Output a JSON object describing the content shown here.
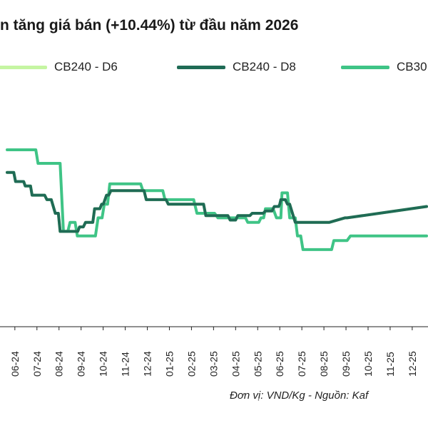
{
  "page": {
    "title": "n tăng giá bán (+10.44%) từ đầu năm 2026",
    "footer": "Đơn vị: VND/Kg - Nguồn: Kaf"
  },
  "legend": [
    {
      "label": "CB240 - D6",
      "color": "#c5f5a2"
    },
    {
      "label": "CB240 - D8",
      "color": "#1f6b55"
    },
    {
      "label": "CB30",
      "color": "#3fc486"
    }
  ],
  "chart_data": {
    "type": "line",
    "title": "n tăng giá bán (+10.44%) từ đầu năm 2026",
    "xlabel": "",
    "ylabel": "",
    "x_ticks": [
      "06-24",
      "07-24",
      "08-24",
      "09-24",
      "10-24",
      "11-24",
      "12-24",
      "01-25",
      "02-25",
      "03-25",
      "04-25",
      "05-25",
      "06-25",
      "07-25",
      "08-25",
      "09-25",
      "10-25",
      "11-25",
      "12-25"
    ],
    "x_range": [
      0,
      19
    ],
    "y_range": [
      0,
      100
    ],
    "grid": false,
    "legend_position": "top",
    "series": [
      {
        "name": "CB240 - D6",
        "color": "#c5f5a2",
        "x": [
          0,
          0.3,
          0.38,
          0.75,
          0.82,
          1.06,
          1.13,
          1.7,
          1.8,
          2.0,
          2.18,
          2.32,
          2.4,
          3.2,
          3.28,
          3.45,
          3.55,
          3.88,
          3.96,
          4.2,
          4.28,
          4.36,
          4.5,
          4.6,
          4.7,
          6.2,
          6.3,
          7.2,
          7.3,
          8.9,
          9.0,
          10.0,
          10.1,
          10.35,
          10.45,
          11.0,
          11.1,
          11.6,
          11.7,
          12.0,
          12.05,
          12.1,
          12.3,
          12.35,
          12.4,
          12.6,
          12.7,
          12.8,
          13.05,
          13.15,
          14.5,
          14.6,
          15.3,
          15.4,
          19
        ],
        "y": [
          68,
          68,
          64,
          64,
          62,
          62,
          58,
          58,
          56,
          56,
          50,
          50,
          42,
          42,
          44,
          44,
          46,
          46,
          52,
          52,
          54,
          54,
          58,
          58,
          60,
          60,
          56,
          56,
          54,
          54,
          49,
          49,
          47,
          47,
          49,
          49,
          50,
          50,
          51,
          51,
          52,
          53,
          53,
          54,
          56,
          56,
          54,
          54,
          46,
          46,
          46,
          46,
          48,
          48,
          53
        ]
      },
      {
        "name": "CB240 - D8",
        "color": "#1f6b55",
        "x": [
          0,
          0.3,
          0.38,
          0.75,
          0.82,
          1.06,
          1.13,
          1.7,
          1.8,
          2.0,
          2.18,
          2.32,
          2.4,
          3.2,
          3.28,
          3.45,
          3.55,
          3.88,
          3.96,
          4.2,
          4.28,
          4.36,
          4.5,
          4.6,
          4.7,
          6.2,
          6.3,
          7.2,
          7.3,
          8.9,
          9.0,
          10.0,
          10.1,
          10.35,
          10.45,
          11.0,
          11.1,
          11.6,
          11.7,
          12.0,
          12.05,
          12.1,
          12.3,
          12.35,
          12.4,
          12.6,
          12.7,
          12.8,
          13.05,
          13.15,
          14.5,
          14.6,
          15.3,
          15.4,
          19
        ],
        "y": [
          68,
          68,
          64,
          64,
          62,
          62,
          58,
          58,
          56,
          56,
          50,
          50,
          42,
          42,
          44,
          44,
          46,
          46,
          52,
          52,
          54,
          54,
          58,
          58,
          60,
          60,
          56,
          56,
          54,
          54,
          49,
          49,
          47,
          47,
          49,
          49,
          50,
          50,
          51,
          51,
          52,
          53,
          53,
          54,
          56,
          56,
          54,
          54,
          46,
          46,
          46,
          46,
          48,
          48,
          53
        ]
      },
      {
        "name": "CB30",
        "color": "#3fc486",
        "x": [
          0,
          1.3,
          1.4,
          2.4,
          2.55,
          2.75,
          2.85,
          3.08,
          3.18,
          4.0,
          4.12,
          4.3,
          4.4,
          4.55,
          4.65,
          6.05,
          6.15,
          7.05,
          7.15,
          8.45,
          8.6,
          9.4,
          9.55,
          10.8,
          10.9,
          11.4,
          11.5,
          11.62,
          11.7,
          12.05,
          12.2,
          12.4,
          12.45,
          12.7,
          12.8,
          13.05,
          13.15,
          13.3,
          13.4,
          14.7,
          14.8,
          15.4,
          15.55,
          19
        ],
        "y": [
          78,
          78,
          72,
          72,
          42,
          42,
          46,
          46,
          40,
          40,
          48,
          48,
          54,
          54,
          63,
          63,
          60,
          60,
          56,
          56,
          50,
          50,
          48,
          48,
          46,
          46,
          48,
          48,
          52,
          52,
          48,
          48,
          59,
          59,
          48,
          48,
          40,
          40,
          34,
          34,
          38,
          38,
          40,
          40
        ]
      }
    ]
  }
}
